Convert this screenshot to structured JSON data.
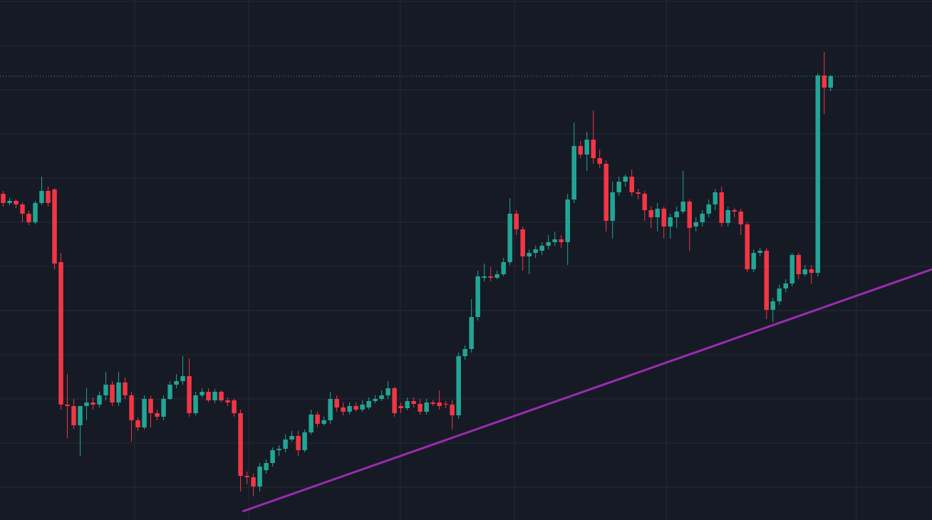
{
  "chart_data": {
    "type": "candlestick",
    "open": [
      458,
      445,
      448,
      443,
      430,
      418,
      445,
      462,
      464,
      362,
      162,
      160,
      133,
      160,
      165,
      162,
      175,
      190,
      165,
      193,
      175,
      140,
      130,
      170,
      150,
      145,
      170,
      190,
      195,
      202,
      150,
      175,
      180,
      168,
      180,
      168,
      168,
      150,
      62,
      60,
      47,
      70,
      80,
      98,
      100,
      113,
      118,
      98,
      123,
      148,
      135,
      140,
      170,
      158,
      152,
      160,
      155,
      158,
      167,
      170,
      175,
      185,
      160,
      157,
      167,
      163,
      152,
      165,
      165,
      163,
      162,
      147,
      230,
      240,
      285,
      340,
      342,
      340,
      345,
      362,
      430,
      408,
      370,
      375,
      378,
      385,
      390,
      394,
      390,
      450,
      525,
      513,
      534,
      508,
      500,
      420,
      460,
      475,
      482,
      460,
      458,
      435,
      425,
      437,
      412,
      425,
      433,
      447,
      412,
      418,
      430,
      443,
      460,
      417,
      435,
      433,
      415,
      352,
      375,
      378,
      295,
      307,
      325,
      332,
      372,
      345,
      352,
      347,
      624,
      607
    ],
    "high": [
      462,
      452,
      450,
      446,
      434,
      448,
      482,
      468,
      466,
      375,
      205,
      170,
      160,
      185,
      172,
      180,
      208,
      195,
      208,
      200,
      180,
      144,
      175,
      174,
      155,
      175,
      195,
      205,
      230,
      227,
      180,
      185,
      185,
      184,
      182,
      172,
      170,
      155,
      68,
      65,
      80,
      85,
      102,
      105,
      120,
      125,
      125,
      127,
      155,
      152,
      145,
      180,
      175,
      165,
      165,
      165,
      168,
      172,
      175,
      182,
      195,
      187,
      165,
      172,
      172,
      170,
      170,
      168,
      182,
      167,
      168,
      235,
      245,
      310,
      350,
      360,
      355,
      350,
      368,
      452,
      435,
      412,
      380,
      385,
      390,
      400,
      405,
      400,
      458,
      558,
      532,
      545,
      575,
      520,
      505,
      475,
      482,
      485,
      492,
      465,
      462,
      440,
      445,
      440,
      430,
      440,
      490,
      450,
      425,
      435,
      450,
      465,
      468,
      440,
      438,
      437,
      418,
      380,
      382,
      382,
      312,
      330,
      338,
      375,
      375,
      358,
      358,
      627,
      657,
      625
    ],
    "low": [
      440,
      442,
      438,
      418,
      414,
      415,
      442,
      440,
      352,
      155,
      115,
      128,
      90,
      140,
      155,
      158,
      168,
      160,
      160,
      170,
      110,
      125,
      127,
      130,
      140,
      140,
      168,
      185,
      190,
      145,
      147,
      172,
      165,
      164,
      165,
      160,
      145,
      40,
      50,
      33,
      40,
      65,
      75,
      90,
      95,
      110,
      90,
      95,
      120,
      130,
      132,
      135,
      152,
      147,
      148,
      152,
      152,
      155,
      164,
      167,
      170,
      145,
      150,
      154,
      158,
      148,
      148,
      160,
      155,
      157,
      127,
      142,
      225,
      235,
      280,
      335,
      335,
      338,
      342,
      358,
      400,
      350,
      345,
      368,
      372,
      380,
      385,
      382,
      358,
      445,
      508,
      490,
      500,
      494,
      405,
      395,
      455,
      468,
      455,
      450,
      420,
      410,
      405,
      395,
      395,
      410,
      430,
      378,
      405,
      412,
      425,
      435,
      412,
      412,
      425,
      400,
      348,
      348,
      370,
      282,
      278,
      302,
      320,
      328,
      338,
      342,
      332,
      342,
      570,
      602
    ],
    "close": [
      445,
      448,
      443,
      430,
      418,
      445,
      462,
      445,
      360,
      162,
      160,
      133,
      160,
      165,
      162,
      175,
      190,
      165,
      193,
      175,
      140,
      130,
      170,
      150,
      145,
      170,
      190,
      195,
      202,
      150,
      175,
      180,
      168,
      180,
      168,
      165,
      150,
      62,
      60,
      47,
      75,
      80,
      98,
      100,
      113,
      118,
      98,
      123,
      148,
      135,
      140,
      170,
      158,
      152,
      160,
      155,
      162,
      167,
      170,
      175,
      185,
      150,
      157,
      167,
      163,
      152,
      165,
      163,
      160,
      162,
      147,
      230,
      240,
      285,
      342,
      342,
      340,
      345,
      362,
      430,
      408,
      370,
      375,
      380,
      385,
      390,
      394,
      390,
      450,
      525,
      513,
      534,
      508,
      500,
      420,
      460,
      475,
      482,
      460,
      458,
      435,
      425,
      437,
      412,
      425,
      433,
      447,
      410,
      418,
      430,
      443,
      460,
      417,
      435,
      433,
      415,
      352,
      375,
      378,
      295,
      307,
      325,
      332,
      372,
      345,
      352,
      347,
      624,
      607,
      623
    ],
    "up_color": "#22a594",
    "down_color": "#f23645",
    "ylim": [
      0,
      730
    ],
    "yticks": [
      46,
      108,
      170,
      232,
      294,
      356,
      418,
      480,
      542,
      604,
      666,
      728
    ],
    "xlim": [
      -0.5,
      144.8
    ],
    "xticks": [
      20.5,
      38.3,
      61.9,
      79.7,
      103.4,
      133
    ],
    "grid": true,
    "trendline": {
      "x": [
        37.3,
        144.8
      ],
      "y": [
        12,
        352
      ],
      "color": "#9c2bb0"
    },
    "price_line": {
      "value": 623,
      "color": "#22a594"
    }
  }
}
